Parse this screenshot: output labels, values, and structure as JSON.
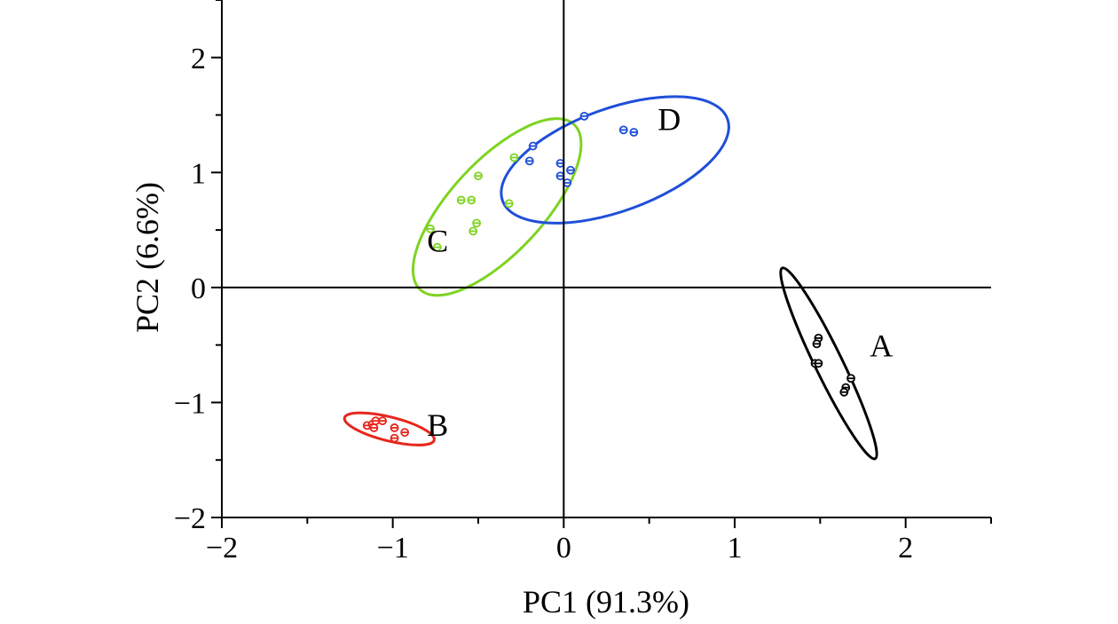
{
  "chart_data": {
    "type": "scatter",
    "title": "",
    "xlabel": "PC1 (91.3%)",
    "ylabel": "PC2 (6.6%)",
    "xlim": [
      -2,
      2.5
    ],
    "ylim": [
      -2,
      2.5
    ],
    "x_ticks": [
      -2,
      -1,
      0,
      1,
      2
    ],
    "y_ticks": [
      -2,
      -1,
      0,
      1,
      2
    ],
    "x_tick_labels": [
      "−2",
      "−1",
      "0",
      "1",
      "2"
    ],
    "y_tick_labels": [
      "−2",
      "−1",
      "0",
      "1",
      "2"
    ],
    "grid": false,
    "reference_lines": {
      "x": 0,
      "y": 0
    },
    "series": [
      {
        "name": "A",
        "color": "#000000",
        "points": [
          [
            1.49,
            -0.44
          ],
          [
            1.48,
            -0.49
          ],
          [
            1.47,
            -0.66
          ],
          [
            1.49,
            -0.66
          ],
          [
            1.68,
            -0.79
          ],
          [
            1.65,
            -0.87
          ],
          [
            1.64,
            -0.91
          ]
        ],
        "ellipse": {
          "cx": 1.55,
          "cy": -0.66,
          "rx": 0.62,
          "ry": 0.08,
          "angle_deg": -64
        }
      },
      {
        "name": "B",
        "color": "#e8251b",
        "points": [
          [
            -1.15,
            -1.2
          ],
          [
            -1.12,
            -1.19
          ],
          [
            -1.1,
            -1.16
          ],
          [
            -1.06,
            -1.16
          ],
          [
            -1.11,
            -1.22
          ],
          [
            -0.99,
            -1.22
          ],
          [
            -0.93,
            -1.26
          ],
          [
            -0.99,
            -1.31
          ]
        ],
        "ellipse": {
          "cx": -1.02,
          "cy": -1.23,
          "rx": 0.27,
          "ry": 0.07,
          "angle_deg": -14
        }
      },
      {
        "name": "C",
        "color": "#7ed321",
        "points": [
          [
            -0.78,
            0.51
          ],
          [
            -0.74,
            0.35
          ],
          [
            -0.6,
            0.76
          ],
          [
            -0.54,
            0.76
          ],
          [
            -0.5,
            0.97
          ],
          [
            -0.51,
            0.56
          ],
          [
            -0.53,
            0.49
          ],
          [
            -0.32,
            0.73
          ],
          [
            -0.29,
            1.13
          ]
        ],
        "ellipse": {
          "cx": -0.39,
          "cy": 0.7,
          "rx": 0.66,
          "ry": 0.27,
          "angle_deg": 47
        }
      },
      {
        "name": "D",
        "color": "#1f4fd8",
        "points": [
          [
            -0.18,
            1.23
          ],
          [
            -0.2,
            1.1
          ],
          [
            -0.02,
            1.08
          ],
          [
            0.04,
            1.02
          ],
          [
            -0.02,
            0.97
          ],
          [
            0.02,
            0.91
          ],
          [
            0.12,
            1.49
          ],
          [
            0.35,
            1.37
          ],
          [
            0.41,
            1.35
          ]
        ],
        "ellipse": {
          "cx": 0.3,
          "cy": 1.11,
          "rx": 0.7,
          "ry": 0.3,
          "angle_deg": 20
        }
      }
    ],
    "label_positions": {
      "A": [
        1.79,
        -0.6
      ],
      "B": [
        -0.8,
        -1.29
      ],
      "C": [
        -0.8,
        0.31
      ],
      "D": [
        0.55,
        1.37
      ]
    }
  }
}
